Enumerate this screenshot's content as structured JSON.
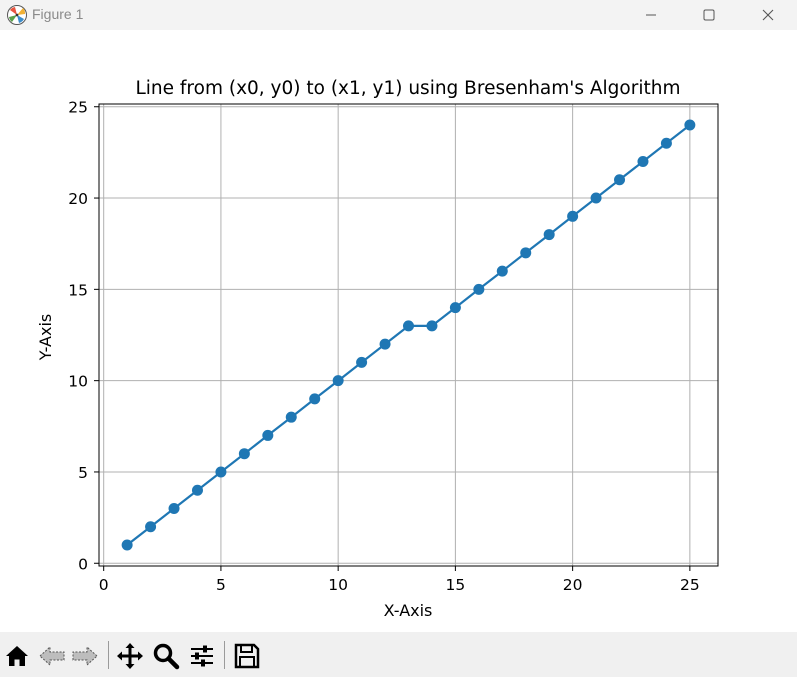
{
  "window": {
    "title": "Figure 1",
    "icons": [
      "matplotlib-logo-icon",
      "minimize-icon",
      "maximize-icon",
      "close-icon"
    ]
  },
  "toolbar": {
    "buttons": [
      "home-icon",
      "back-icon",
      "forward-icon",
      "pan-icon",
      "zoom-icon",
      "configure-subplots-icon",
      "save-icon"
    ]
  },
  "chart_data": {
    "type": "line",
    "title": "Line from (x0, y0) to (x1, y1) using Bresenham's Algorithm",
    "xlabel": "X-Axis",
    "ylabel": "Y-Axis",
    "x": [
      1,
      2,
      3,
      4,
      5,
      6,
      7,
      8,
      9,
      10,
      11,
      12,
      13,
      14,
      15,
      16,
      17,
      18,
      19,
      20,
      21,
      22,
      23,
      24,
      25
    ],
    "y": [
      1,
      2,
      3,
      4,
      5,
      6,
      7,
      8,
      9,
      10,
      11,
      12,
      13,
      13,
      14,
      15,
      16,
      17,
      18,
      19,
      20,
      21,
      22,
      23,
      24
    ],
    "xlim": [
      -0.2,
      26.2
    ],
    "ylim": [
      -0.15,
      25.15
    ],
    "xticks": [
      "0",
      "5",
      "10",
      "15",
      "20",
      "25"
    ],
    "yticks": [
      "0",
      "5",
      "10",
      "15",
      "20",
      "25"
    ],
    "marker": "circle",
    "line_color": "#1f77b4",
    "grid": true,
    "grid_color": "#b0b0b0"
  }
}
